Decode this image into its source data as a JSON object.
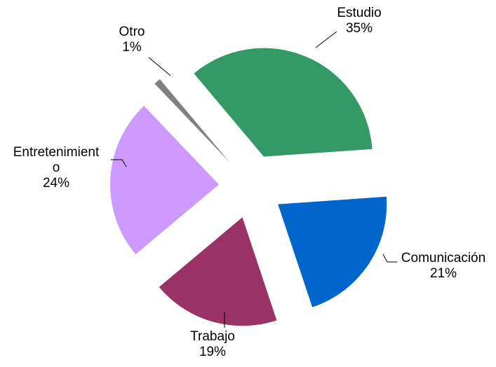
{
  "chart_data": {
    "type": "pie",
    "categories": [
      "Estudio",
      "Comunicación",
      "Trabajo",
      "Entretenimiento",
      "Otro"
    ],
    "values": [
      35,
      21,
      19,
      24,
      1
    ],
    "value_labels": [
      "35%",
      "21%",
      "19%",
      "24%",
      "1%"
    ],
    "colors": [
      "#339966",
      "#0066cc",
      "#993366",
      "#cc99ff",
      "#808080"
    ]
  }
}
